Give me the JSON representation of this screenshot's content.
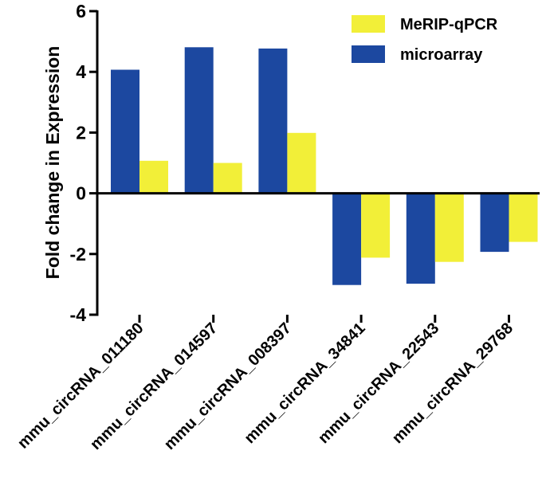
{
  "chart_data": {
    "type": "bar",
    "title": "",
    "xlabel": "",
    "ylabel": "Fold change in Expression",
    "ylim": [
      -4,
      6
    ],
    "yticks": [
      6,
      4,
      2,
      0,
      -2,
      -4
    ],
    "ytick_labels": [
      "6",
      "4",
      "2",
      "0",
      "-2",
      "-4"
    ],
    "grid": false,
    "legend_position": "top-right",
    "categories": [
      "mmu_circRNA_011180",
      "mmu_circRNA_014597",
      "mmu_circRNA_008397",
      "mmu_circRNA_34841",
      "mmu_circRNA_22543",
      "mmu_circRNA_29768"
    ],
    "series": [
      {
        "name": "microarray",
        "color": "#1c48a0",
        "values": [
          4.07,
          4.81,
          4.77,
          -3.02,
          -2.98,
          -1.93
        ]
      },
      {
        "name": "MeRIP-qPCR",
        "color": "#f2ef38",
        "values": [
          1.07,
          1.0,
          1.99,
          -2.12,
          -2.26,
          -1.6
        ]
      }
    ],
    "legend": [
      {
        "name": "MeRIP-qPCR",
        "color": "#f2ef38"
      },
      {
        "name": "microarray",
        "color": "#1c48a0"
      }
    ]
  }
}
